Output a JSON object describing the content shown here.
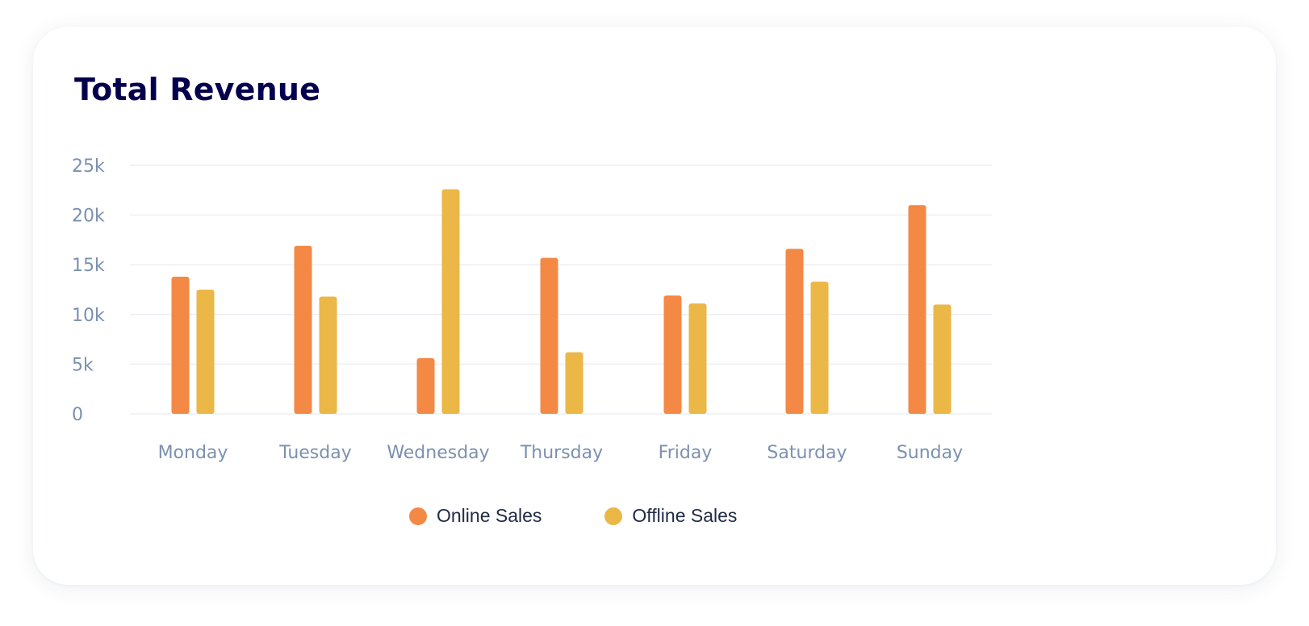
{
  "card": {
    "title": "Total Revenue"
  },
  "colors": {
    "online": "#F48845",
    "offline": "#EBB746",
    "grid": "#ECEFF4",
    "axis_text": "#7B91B0",
    "title": "#05004E"
  },
  "chart_data": {
    "type": "bar",
    "title": "Total Revenue",
    "categories": [
      "Monday",
      "Tuesday",
      "Wednesday",
      "Thursday",
      "Friday",
      "Saturday",
      "Sunday"
    ],
    "series": [
      {
        "name": "Online Sales",
        "values": [
          13800,
          16900,
          5600,
          15700,
          11900,
          16600,
          21000
        ]
      },
      {
        "name": "Offline Sales",
        "values": [
          12500,
          11800,
          22600,
          6200,
          11100,
          13300,
          11000
        ]
      }
    ],
    "yticks": [
      "0",
      "5k",
      "10k",
      "15k",
      "20k",
      "25k"
    ],
    "ylim": [
      0,
      25000
    ],
    "grid": true,
    "legend_position": "bottom-center",
    "xlabel": "",
    "ylabel": ""
  }
}
